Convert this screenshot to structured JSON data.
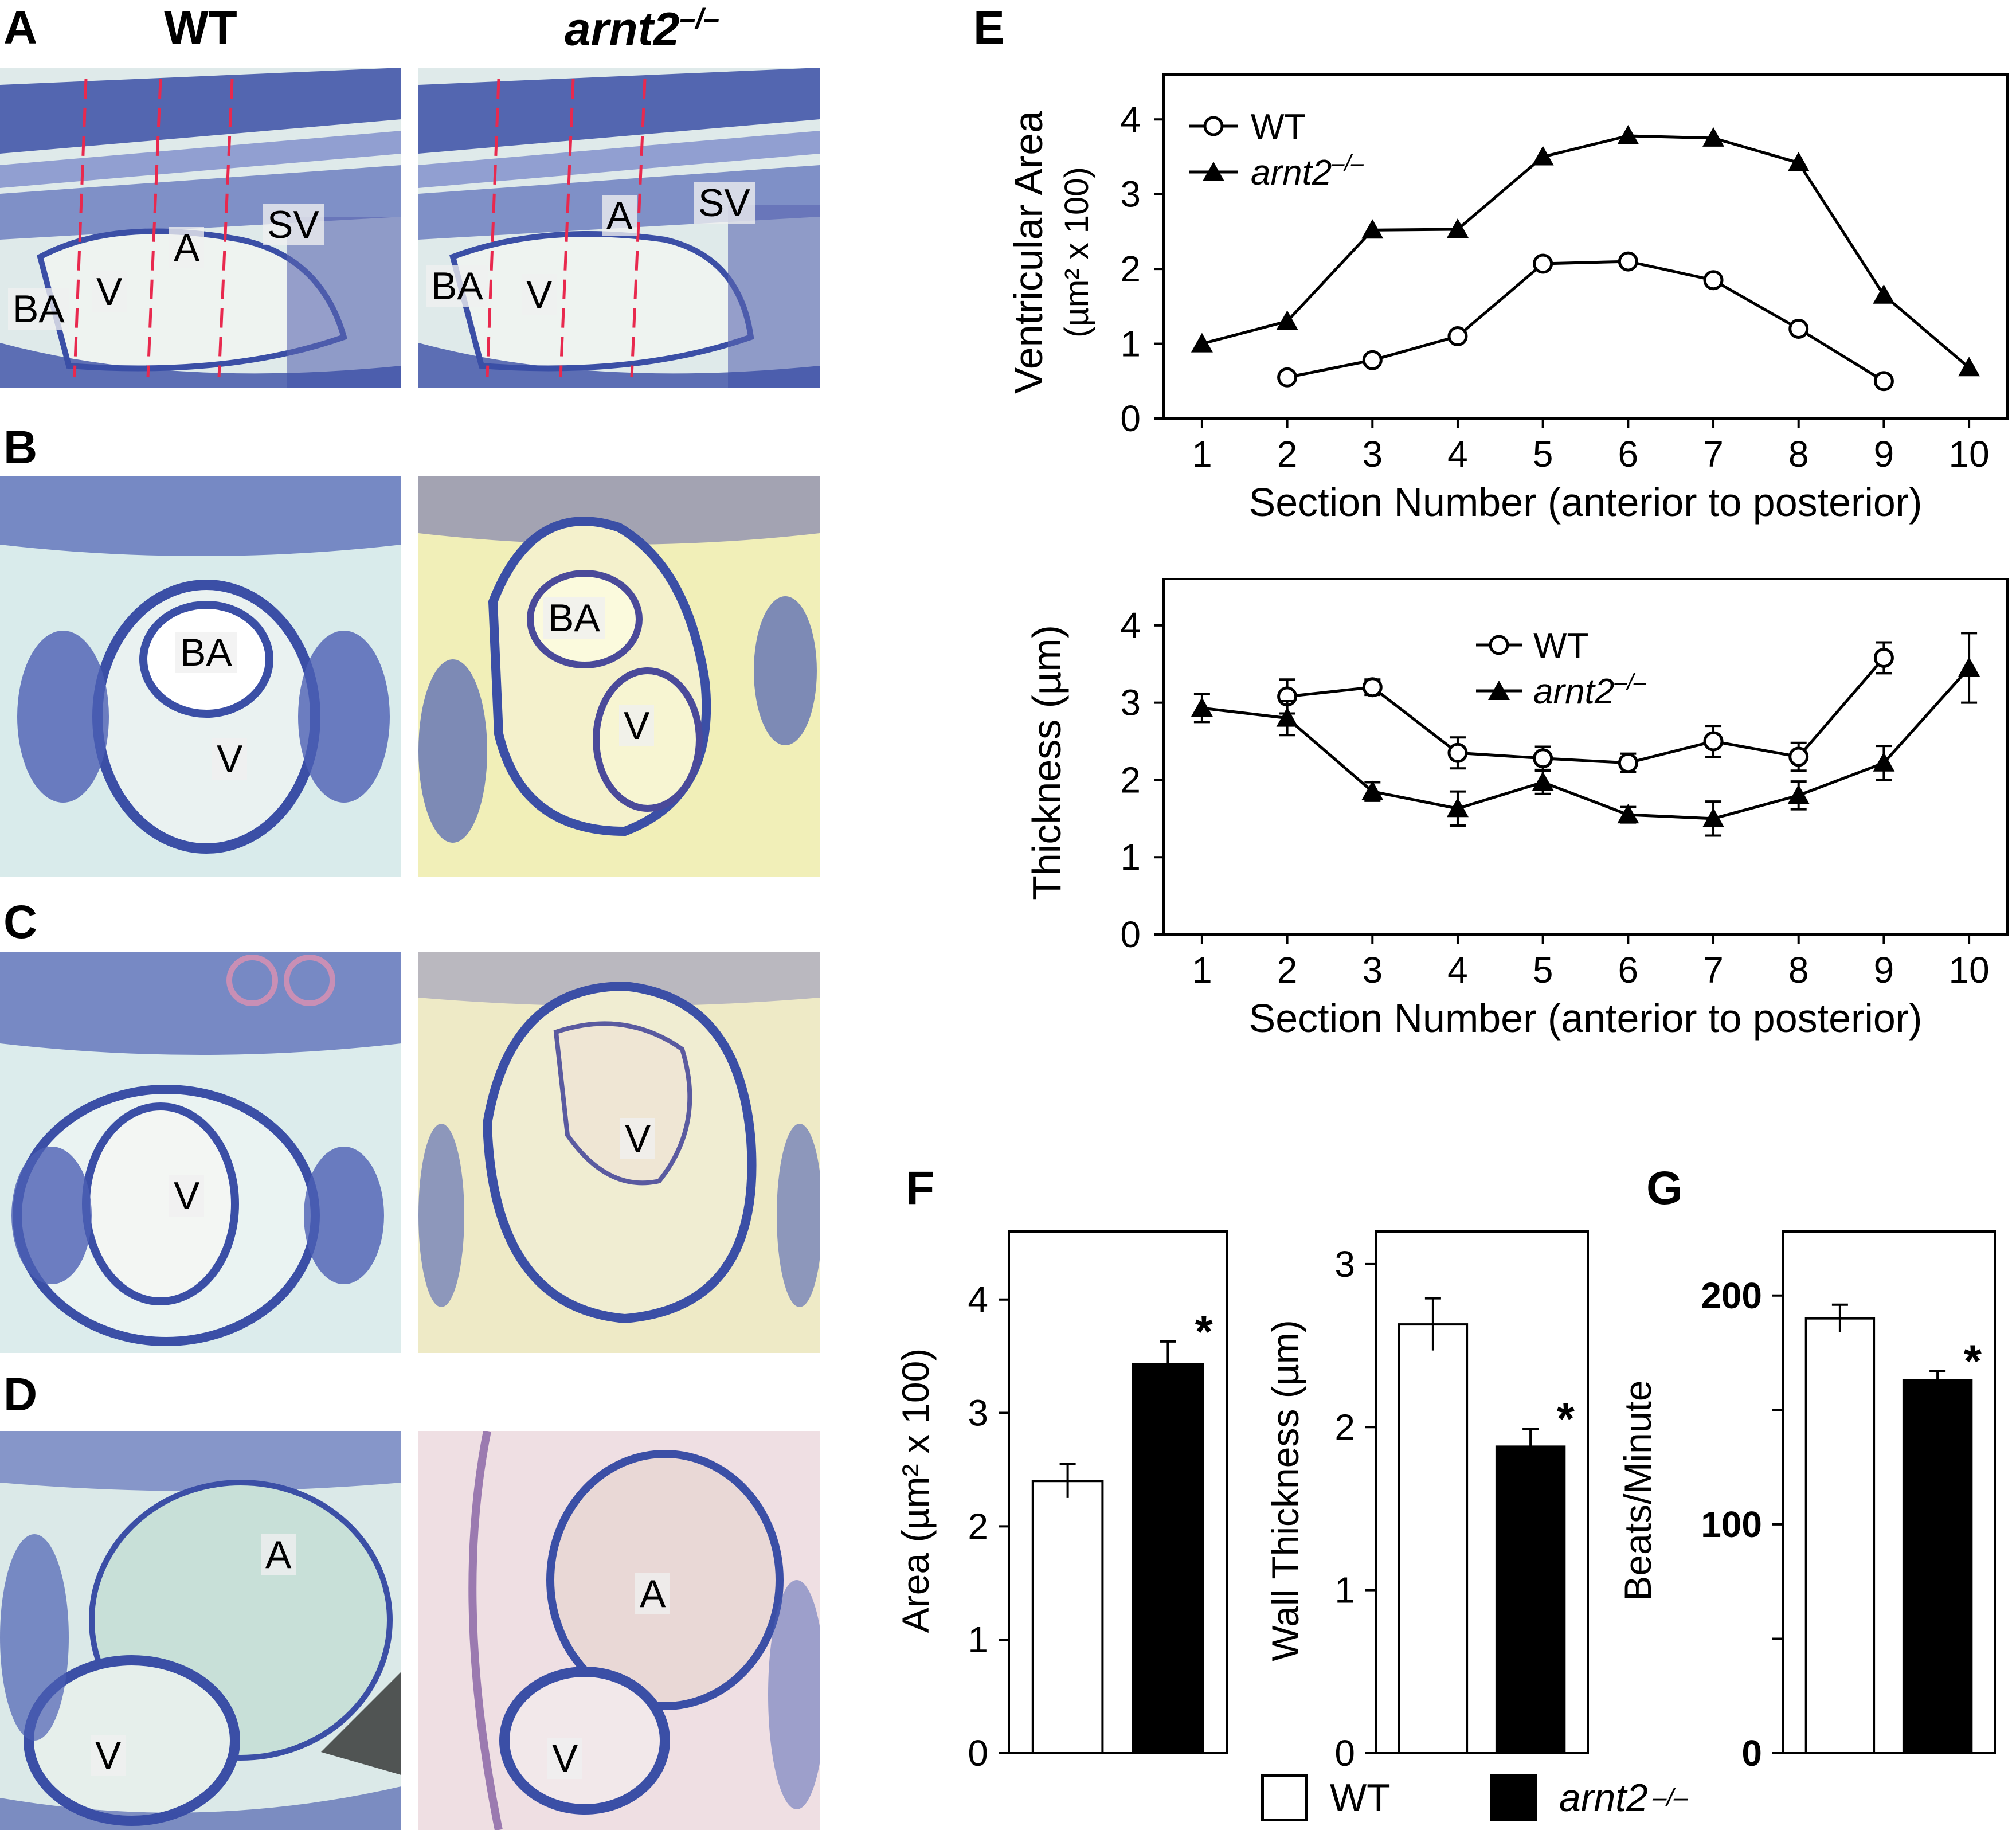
{
  "panels": {
    "A": "A",
    "B": "B",
    "C": "C",
    "D": "D",
    "E": "E",
    "F": "F",
    "G": "G"
  },
  "micrographs": {
    "columns": [
      "WT",
      "arnt2",
      "–/–"
    ],
    "row_A": {
      "wt_labels": [
        "BA",
        "V",
        "A",
        "SV"
      ],
      "mut_labels": [
        "BA",
        "V",
        "A",
        "SV"
      ]
    },
    "row_B": {
      "wt_labels": [
        "BA",
        "V"
      ],
      "mut_labels": [
        "BA",
        "V"
      ]
    },
    "row_C": {
      "wt_labels": [
        "V"
      ],
      "mut_labels": [
        "V"
      ]
    },
    "row_D": {
      "wt_labels": [
        "A",
        "V"
      ],
      "mut_labels": [
        "A",
        "V"
      ]
    },
    "colors": {
      "stain_blue": "#3b4fa6",
      "wt_bg": "#dfeaea",
      "mut_bg": "#f1efb8",
      "section_line": "#e8294e"
    }
  },
  "chart_data": [
    {
      "id": "E_top",
      "type": "line",
      "ylabel": "Ventricular Area",
      "ylabel_units": "(µm² x 100)",
      "xlabel": "Section Number (anterior to posterior)",
      "x": [
        1,
        2,
        3,
        4,
        5,
        6,
        7,
        8,
        9,
        10
      ],
      "xlim": [
        0.55,
        10.45
      ],
      "ylim": [
        0,
        4.6
      ],
      "yticks": [
        0,
        1,
        2,
        3,
        4
      ],
      "series": [
        {
          "name": "WT",
          "marker": "circle-open",
          "points": [
            [
              2,
              0.55
            ],
            [
              3,
              0.78
            ],
            [
              4,
              1.1
            ],
            [
              5,
              2.07
            ],
            [
              6,
              2.1
            ],
            [
              7,
              1.85
            ],
            [
              8,
              1.2
            ],
            [
              9,
              0.5
            ]
          ]
        },
        {
          "name": "arnt2",
          "name_sup": "–/–",
          "marker": "triangle-filled",
          "points": [
            [
              1,
              1.0
            ],
            [
              2,
              1.3
            ],
            [
              3,
              2.52
            ],
            [
              4,
              2.53
            ],
            [
              5,
              3.5
            ],
            [
              6,
              3.78
            ],
            [
              7,
              3.75
            ],
            [
              8,
              3.42
            ],
            [
              9,
              1.65
            ],
            [
              10,
              0.68
            ]
          ]
        }
      ],
      "legend": "top-left"
    },
    {
      "id": "E_bottom",
      "type": "line",
      "ylabel": "Thickness (µm)",
      "xlabel": "Section Number (anterior to posterior)",
      "x": [
        1,
        2,
        3,
        4,
        5,
        6,
        7,
        8,
        9,
        10
      ],
      "xlim": [
        0.55,
        10.45
      ],
      "ylim": [
        0,
        4.6
      ],
      "yticks": [
        0,
        1,
        2,
        3,
        4
      ],
      "series": [
        {
          "name": "WT",
          "marker": "circle-open",
          "points": [
            [
              2,
              3.08
            ],
            [
              3,
              3.2
            ],
            [
              4,
              2.35
            ],
            [
              5,
              2.28
            ],
            [
              6,
              2.22
            ],
            [
              7,
              2.5
            ],
            [
              8,
              2.3
            ],
            [
              9,
              3.58
            ]
          ],
          "errors": [
            0.22,
            0.1,
            0.2,
            0.15,
            0.12,
            0.2,
            0.18,
            0.2
          ]
        },
        {
          "name": "arnt2",
          "name_sup": "–/–",
          "marker": "triangle-filled",
          "points": [
            [
              1,
              2.93
            ],
            [
              2,
              2.8
            ],
            [
              3,
              1.85
            ],
            [
              4,
              1.63
            ],
            [
              5,
              1.97
            ],
            [
              6,
              1.55
            ],
            [
              7,
              1.5
            ],
            [
              8,
              1.8
            ],
            [
              9,
              2.22
            ],
            [
              10,
              3.45
            ]
          ],
          "errors": [
            0.18,
            0.22,
            0.12,
            0.22,
            0.15,
            0.1,
            0.22,
            0.18,
            0.22,
            0.45
          ]
        }
      ],
      "legend": "top-center"
    },
    {
      "id": "F_area",
      "type": "bar",
      "ylabel": "Area (µm² x 100)",
      "categories": [
        "WT",
        "arnt2 –/–"
      ],
      "values": [
        2.4,
        3.43
      ],
      "errors": [
        0.15,
        0.2
      ],
      "ylim": [
        0,
        4.6
      ],
      "yticks": [
        0,
        1,
        2,
        3,
        4
      ],
      "significance": [
        "",
        "*"
      ]
    },
    {
      "id": "F_thickness",
      "type": "bar",
      "ylabel": "Wall Thickness (µm)",
      "categories": [
        "WT",
        "arnt2 –/–"
      ],
      "values": [
        2.63,
        1.88
      ],
      "errors": [
        0.16,
        0.11
      ],
      "ylim": [
        0,
        3.2
      ],
      "yticks": [
        0,
        1,
        2,
        3
      ],
      "significance": [
        "",
        "*"
      ]
    },
    {
      "id": "G_rate",
      "type": "bar",
      "ylabel": "Beats/Minute",
      "categories": [
        "WT",
        "arnt2 –/–"
      ],
      "values": [
        190,
        163
      ],
      "errors": [
        6,
        4
      ],
      "ylim": [
        0,
        228
      ],
      "yticks": [
        0,
        100,
        200
      ],
      "minor_yticks": [
        50,
        150
      ],
      "significance": [
        "",
        "*"
      ]
    }
  ],
  "bar_legend": {
    "wt": "WT",
    "mut": "arnt2",
    "mut_sup": "–/–"
  }
}
